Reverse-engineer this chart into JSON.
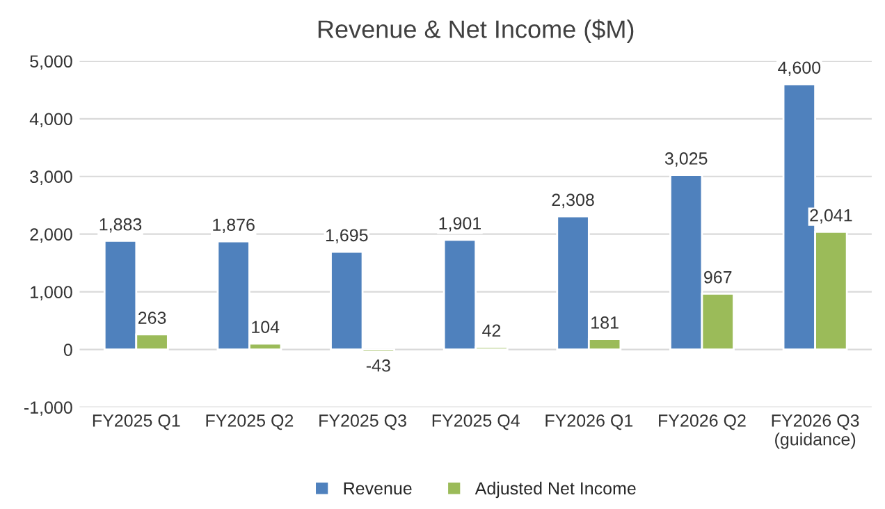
{
  "chart_data": {
    "type": "bar",
    "title": "Revenue & Net Income ($M)",
    "categories": [
      "FY2025 Q1",
      "FY2025 Q2",
      "FY2025 Q3",
      "FY2025 Q4",
      "FY2026 Q1",
      "FY2026 Q2",
      "FY2026 Q3\n(guidance)"
    ],
    "series": [
      {
        "name": "Revenue",
        "color": "#4f81bd",
        "values": [
          1883,
          1876,
          1695,
          1901,
          2308,
          3025,
          4600
        ],
        "value_labels": [
          "1,883",
          "1,876",
          "1,695",
          "1,901",
          "2,308",
          "3,025",
          "4,600"
        ]
      },
      {
        "name": "Adjusted Net Income",
        "color": "#9bbb59",
        "values": [
          263,
          104,
          -43,
          42,
          181,
          967,
          2041
        ],
        "value_labels": [
          "263",
          "104",
          "-43",
          "42",
          "181",
          "967",
          "2,041"
        ]
      }
    ],
    "ylim": [
      -1000,
      5000
    ],
    "yticks": [
      {
        "value": -1000,
        "label": "-1,000"
      },
      0,
      {
        "value": 1000,
        "label": "1,000"
      },
      {
        "value": 2000,
        "label": "2,000"
      },
      {
        "value": 3000,
        "label": "3,000"
      },
      {
        "value": 4000,
        "label": "4,000"
      },
      {
        "value": 5000,
        "label": "5,000"
      }
    ],
    "grid": "y",
    "legend": "bottom"
  }
}
